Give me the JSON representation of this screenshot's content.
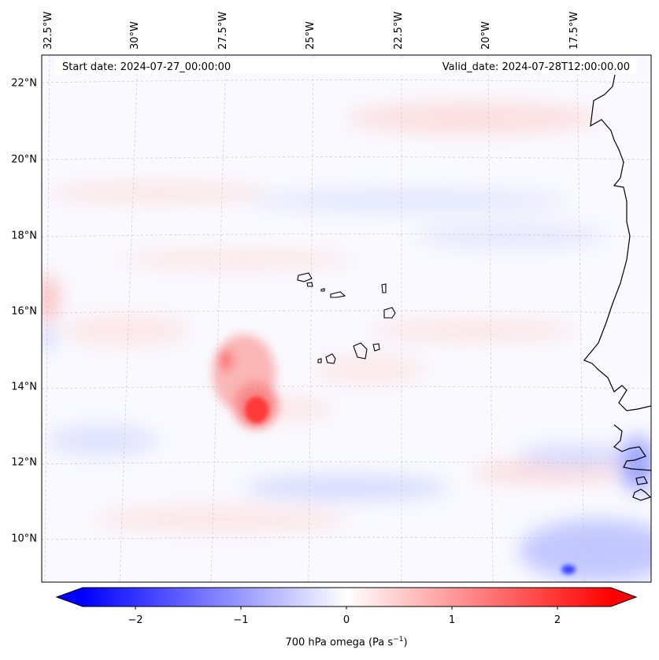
{
  "map": {
    "info_start": "Start date: 2024-07-27_00:00:00",
    "info_valid": "Valid_date: 2024-07-28T12:00:00.00",
    "lat_labels": [
      "22°N",
      "20°N",
      "18°N",
      "16°N",
      "14°N",
      "12°N",
      "10°N"
    ],
    "lon_labels": [
      "32.5°W",
      "30°W",
      "27.5°W",
      "25°W",
      "22.5°W",
      "20°W",
      "17.5°W"
    ],
    "field": "700 hPa omega",
    "features": [
      "Cape Verde islands",
      "West African coastline"
    ]
  },
  "colorbar": {
    "ticks": [
      "−2",
      "−1",
      "0",
      "1",
      "2"
    ],
    "tick_values": [
      -2,
      -1,
      0,
      1,
      2
    ],
    "range": [
      -2.5,
      2.5
    ],
    "label_main": "700 hPa omega (Pa s",
    "label_sup": "−1",
    "label_end": ")",
    "cmap_low": "#0000ff",
    "cmap_mid": "#ffffff",
    "cmap_high": "#ff0000"
  }
}
